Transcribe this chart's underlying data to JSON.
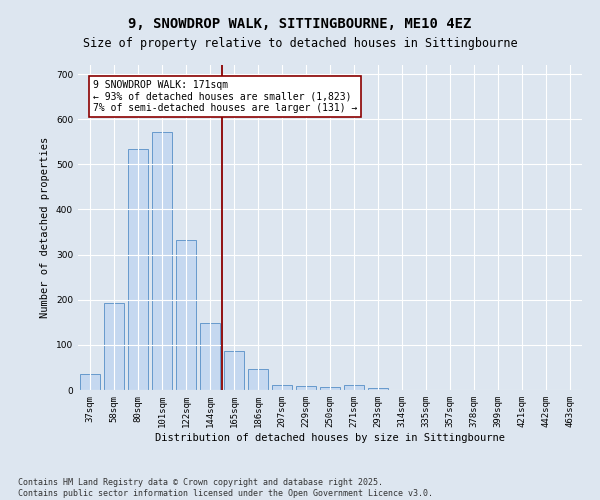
{
  "title": "9, SNOWDROP WALK, SITTINGBOURNE, ME10 4EZ",
  "subtitle": "Size of property relative to detached houses in Sittingbourne",
  "xlabel": "Distribution of detached houses by size in Sittingbourne",
  "ylabel": "Number of detached properties",
  "categories": [
    "37sqm",
    "58sqm",
    "80sqm",
    "101sqm",
    "122sqm",
    "144sqm",
    "165sqm",
    "186sqm",
    "207sqm",
    "229sqm",
    "250sqm",
    "271sqm",
    "293sqm",
    "314sqm",
    "335sqm",
    "357sqm",
    "378sqm",
    "399sqm",
    "421sqm",
    "442sqm",
    "463sqm"
  ],
  "values": [
    35,
    193,
    533,
    572,
    332,
    148,
    87,
    47,
    12,
    9,
    6,
    10,
    4,
    0,
    0,
    0,
    0,
    0,
    0,
    0,
    0
  ],
  "bar_color": "#c5d8f0",
  "bar_edge_color": "#6699cc",
  "vline_x_index": 6,
  "vline_color": "#8b0000",
  "annotation_text": "9 SNOWDROP WALK: 171sqm\n← 93% of detached houses are smaller (1,823)\n7% of semi-detached houses are larger (131) →",
  "ylim": [
    0,
    720
  ],
  "yticks": [
    0,
    100,
    200,
    300,
    400,
    500,
    600,
    700
  ],
  "bg_color": "#dde6f0",
  "plot_bg_color": "#dde6f0",
  "footer": "Contains HM Land Registry data © Crown copyright and database right 2025.\nContains public sector information licensed under the Open Government Licence v3.0.",
  "title_fontsize": 10,
  "subtitle_fontsize": 8.5,
  "label_fontsize": 7.5,
  "tick_fontsize": 6.5,
  "footer_fontsize": 6,
  "annot_fontsize": 7
}
